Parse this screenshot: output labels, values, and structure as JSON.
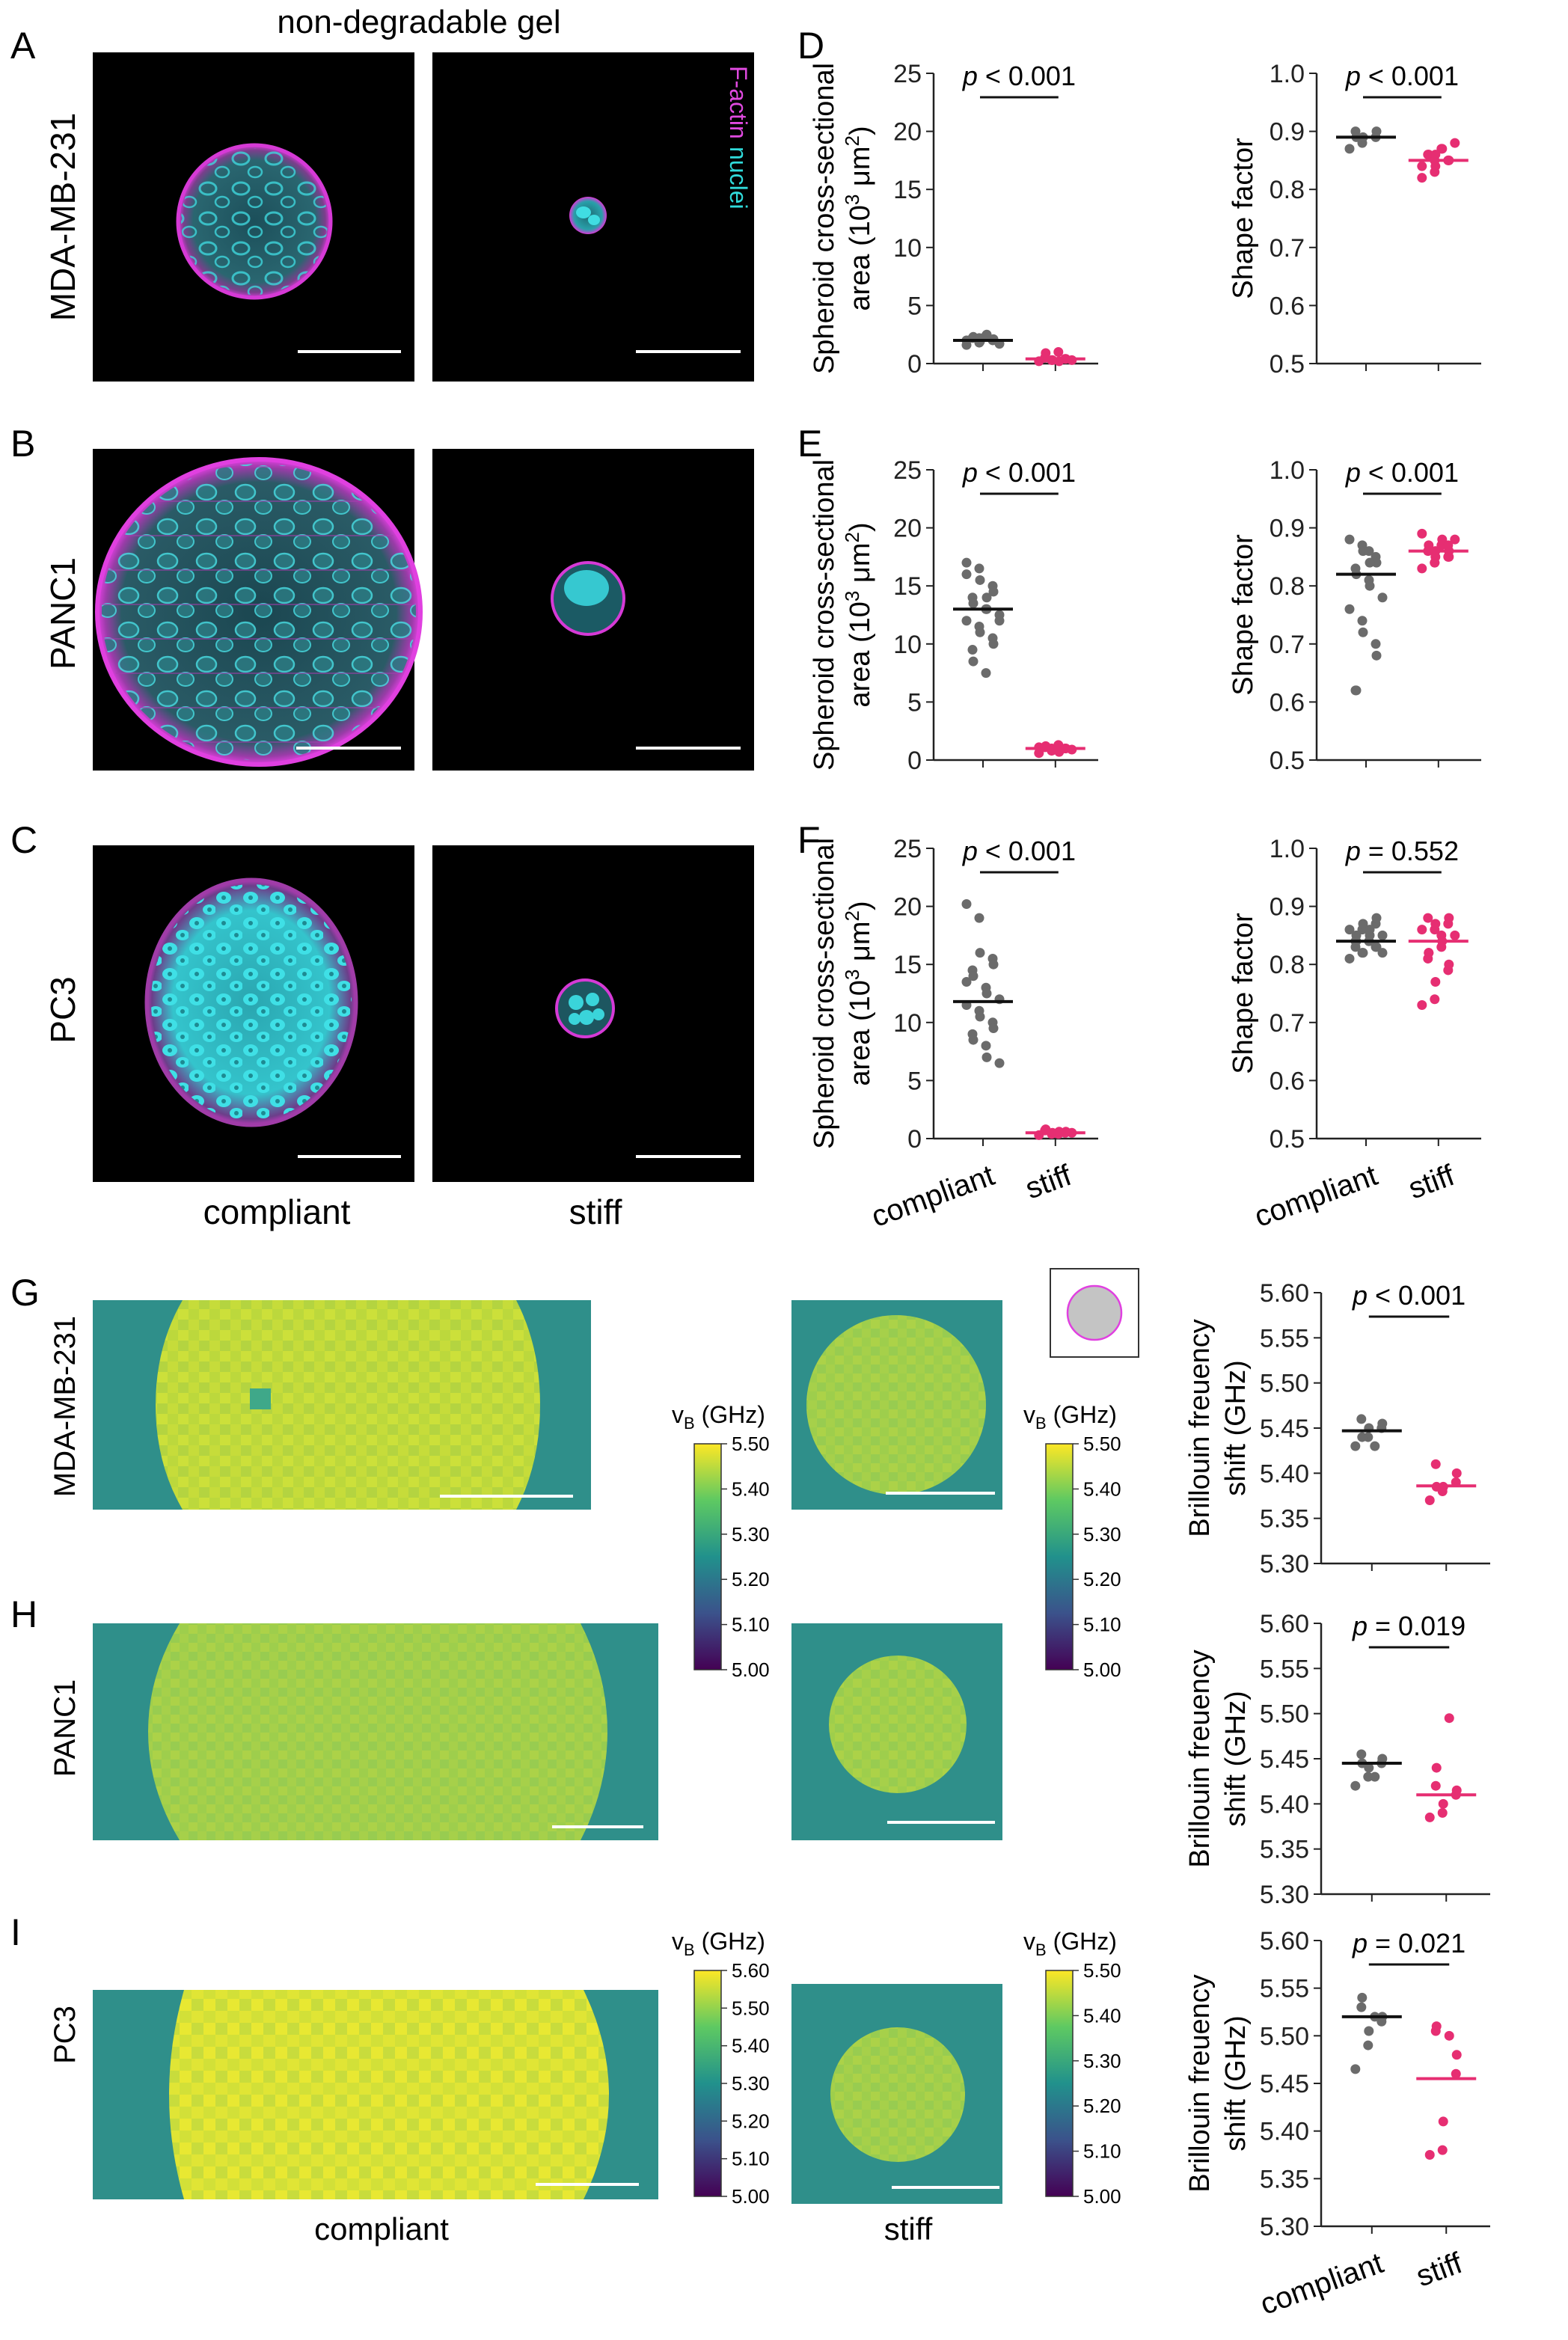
{
  "colors": {
    "compliant": "#6b6b6b",
    "stiff": "#e62e72",
    "factin": "#d63ad6",
    "nuclei": "#23d4d4",
    "viridis": [
      "#440154",
      "#3b528b",
      "#21918c",
      "#5ec962",
      "#fde725"
    ]
  },
  "labels": {
    "panel_letters": [
      "A",
      "B",
      "C",
      "D",
      "E",
      "F",
      "G",
      "H",
      "I"
    ],
    "top_title": "non-degradable gel",
    "cell_lines": [
      "MDA-MB-231",
      "PANC1",
      "PC3"
    ],
    "stain_factin": "F-actin",
    "stain_nuclei": "nuclei",
    "condition_compliant": "compliant",
    "condition_stiff": "stiff",
    "colorbar_title_v": "v",
    "colorbar_title_sub": "B",
    "colorbar_title_unit": " (GHz)",
    "area_ylabel_line1": "Spheroid cross-sectional",
    "area_ylabel_line2_pre": "area (10",
    "area_ylabel_sup1": "3",
    "area_ylabel_mid": " μm",
    "area_ylabel_sup2": "2",
    "area_ylabel_post": ")",
    "shape_ylabel": "Shape factor",
    "brillouin_ylabel_line1": "Brillouin freuency",
    "brillouin_ylabel_line2": "shift (GHz)",
    "p_italic": "p"
  },
  "colorbars": [
    {
      "ticks": [
        "5.50",
        "5.40",
        "5.30",
        "5.20",
        "5.10",
        "5.00"
      ]
    },
    {
      "ticks": [
        "5.50",
        "5.40",
        "5.30",
        "5.20",
        "5.10",
        "5.00"
      ]
    },
    {
      "ticks": [
        "5.60",
        "5.50",
        "5.40",
        "5.30",
        "5.20",
        "5.10",
        "5.00"
      ]
    },
    {
      "ticks": [
        "5.50",
        "5.40",
        "5.30",
        "5.20",
        "5.10",
        "5.00"
      ]
    }
  ],
  "chart_data": [
    {
      "type": "scatter",
      "panel": "D",
      "metric": "area",
      "ylim": [
        0,
        25
      ],
      "yticks": [
        "0",
        "5",
        "10",
        "15",
        "20",
        "25"
      ],
      "pvalue": "< 0.001",
      "categories": [
        "compliant",
        "stiff"
      ],
      "median": [
        2.0,
        0.4
      ],
      "series": [
        {
          "name": "compliant",
          "values": [
            1.6,
            1.8,
            1.9,
            2.0,
            2.1,
            2.2,
            2.3,
            2.4,
            2.5,
            1.7,
            2.0,
            2.2
          ]
        },
        {
          "name": "stiff",
          "values": [
            0.2,
            0.3,
            0.3,
            0.4,
            0.4,
            0.5,
            0.9,
            1.0,
            0.2,
            0.3
          ]
        }
      ]
    },
    {
      "type": "scatter",
      "panel": "D",
      "metric": "shape",
      "ylim": [
        0.5,
        1.0
      ],
      "yticks": [
        "0.5",
        "0.6",
        "0.7",
        "0.8",
        "0.9",
        "1.0"
      ],
      "pvalue": "< 0.001",
      "categories": [
        "compliant",
        "stiff"
      ],
      "median": [
        0.89,
        0.85
      ],
      "series": [
        {
          "name": "compliant",
          "values": [
            0.87,
            0.88,
            0.89,
            0.89,
            0.9,
            0.9,
            0.89
          ]
        },
        {
          "name": "stiff",
          "values": [
            0.82,
            0.83,
            0.84,
            0.85,
            0.85,
            0.86,
            0.86,
            0.87,
            0.87,
            0.88,
            0.84,
            0.85,
            0.86
          ]
        }
      ]
    },
    {
      "type": "scatter",
      "panel": "E",
      "metric": "area",
      "ylim": [
        0,
        25
      ],
      "yticks": [
        "0",
        "5",
        "10",
        "15",
        "20",
        "25"
      ],
      "pvalue": "< 0.001",
      "categories": [
        "compliant",
        "stiff"
      ],
      "median": [
        13.0,
        1.0
      ],
      "series": [
        {
          "name": "compliant",
          "values": [
            17.0,
            16.5,
            15.5,
            15.0,
            14.5,
            14.0,
            13.5,
            13.0,
            13.0,
            12.5,
            12.0,
            11.5,
            11.0,
            10.5,
            10.0,
            9.5,
            8.5,
            7.5,
            14.0,
            12.0,
            16.0
          ]
        },
        {
          "name": "stiff",
          "values": [
            0.6,
            0.8,
            0.9,
            1.0,
            1.0,
            1.1,
            1.2,
            1.3,
            0.7,
            0.9,
            1.1,
            1.0
          ]
        }
      ]
    },
    {
      "type": "scatter",
      "panel": "E",
      "metric": "shape",
      "ylim": [
        0.5,
        1.0
      ],
      "yticks": [
        "0.5",
        "0.6",
        "0.7",
        "0.8",
        "0.9",
        "1.0"
      ],
      "pvalue": "< 0.001",
      "categories": [
        "compliant",
        "stiff"
      ],
      "median": [
        0.82,
        0.86
      ],
      "series": [
        {
          "name": "compliant",
          "values": [
            0.88,
            0.87,
            0.86,
            0.85,
            0.84,
            0.83,
            0.82,
            0.81,
            0.8,
            0.78,
            0.76,
            0.74,
            0.72,
            0.7,
            0.68,
            0.62,
            0.62,
            0.86,
            0.84
          ]
        },
        {
          "name": "stiff",
          "values": [
            0.83,
            0.84,
            0.85,
            0.85,
            0.86,
            0.86,
            0.87,
            0.87,
            0.88,
            0.88,
            0.89,
            0.84,
            0.86,
            0.87,
            0.85
          ]
        }
      ]
    },
    {
      "type": "scatter",
      "panel": "F",
      "metric": "area",
      "ylim": [
        0,
        25
      ],
      "yticks": [
        "0",
        "5",
        "10",
        "15",
        "20",
        "25"
      ],
      "pvalue": "< 0.001",
      "categories": [
        "compliant",
        "stiff"
      ],
      "median": [
        11.8,
        0.5
      ],
      "series": [
        {
          "name": "compliant",
          "values": [
            20.2,
            19.0,
            16.0,
            15.5,
            15.0,
            14.5,
            14.0,
            13.0,
            12.5,
            12.0,
            11.5,
            11.0,
            10.5,
            10.0,
            9.5,
            9.0,
            8.5,
            8.0,
            7.0,
            6.5,
            13.5
          ]
        },
        {
          "name": "stiff",
          "values": [
            0.3,
            0.4,
            0.5,
            0.5,
            0.6,
            0.7,
            0.8,
            0.4,
            0.6,
            0.5
          ]
        }
      ]
    },
    {
      "type": "scatter",
      "panel": "F",
      "metric": "shape",
      "ylim": [
        0.5,
        1.0
      ],
      "yticks": [
        "0.5",
        "0.6",
        "0.7",
        "0.8",
        "0.9",
        "1.0"
      ],
      "pvalue": "= 0.552",
      "categories": [
        "compliant",
        "stiff"
      ],
      "median": [
        0.84,
        0.84
      ],
      "series": [
        {
          "name": "compliant",
          "values": [
            0.81,
            0.82,
            0.82,
            0.83,
            0.83,
            0.84,
            0.84,
            0.84,
            0.85,
            0.85,
            0.86,
            0.86,
            0.87,
            0.87,
            0.88,
            0.83,
            0.85,
            0.84,
            0.86,
            0.82
          ]
        },
        {
          "name": "stiff",
          "values": [
            0.73,
            0.74,
            0.77,
            0.79,
            0.8,
            0.81,
            0.82,
            0.83,
            0.84,
            0.85,
            0.86,
            0.86,
            0.87,
            0.87,
            0.88,
            0.88,
            0.82,
            0.85
          ]
        }
      ]
    },
    {
      "type": "scatter",
      "panel": "G",
      "metric": "brillouin",
      "ylim": [
        5.3,
        5.6
      ],
      "yticks": [
        "5.30",
        "5.35",
        "5.40",
        "5.45",
        "5.50",
        "5.55",
        "5.60"
      ],
      "pvalue": "< 0.001",
      "categories": [
        "compliant",
        "stiff"
      ],
      "median": [
        5.447,
        5.386
      ],
      "series": [
        {
          "name": "compliant",
          "values": [
            5.43,
            5.44,
            5.45,
            5.45,
            5.455,
            5.46,
            5.44,
            5.43
          ]
        },
        {
          "name": "stiff",
          "values": [
            5.37,
            5.38,
            5.385,
            5.39,
            5.4,
            5.41,
            5.385
          ]
        }
      ]
    },
    {
      "type": "scatter",
      "panel": "H",
      "metric": "brillouin",
      "ylim": [
        5.3,
        5.6
      ],
      "yticks": [
        "5.30",
        "5.35",
        "5.40",
        "5.45",
        "5.50",
        "5.55",
        "5.60"
      ],
      "pvalue": "= 0.019",
      "categories": [
        "compliant",
        "stiff"
      ],
      "median": [
        5.445,
        5.41
      ],
      "series": [
        {
          "name": "compliant",
          "values": [
            5.42,
            5.43,
            5.44,
            5.445,
            5.45,
            5.455,
            5.445,
            5.43
          ]
        },
        {
          "name": "stiff",
          "values": [
            5.385,
            5.39,
            5.4,
            5.41,
            5.415,
            5.42,
            5.44,
            5.495
          ]
        }
      ]
    },
    {
      "type": "scatter",
      "panel": "I",
      "metric": "brillouin",
      "ylim": [
        5.3,
        5.6
      ],
      "yticks": [
        "5.30",
        "5.35",
        "5.40",
        "5.45",
        "5.50",
        "5.55",
        "5.60"
      ],
      "pvalue": "= 0.021",
      "categories": [
        "compliant",
        "stiff"
      ],
      "median": [
        5.52,
        5.455
      ],
      "series": [
        {
          "name": "compliant",
          "values": [
            5.465,
            5.49,
            5.505,
            5.515,
            5.52,
            5.53,
            5.54,
            5.52
          ]
        },
        {
          "name": "stiff",
          "values": [
            5.375,
            5.38,
            5.41,
            5.46,
            5.48,
            5.505,
            5.51,
            5.5
          ]
        }
      ]
    }
  ]
}
